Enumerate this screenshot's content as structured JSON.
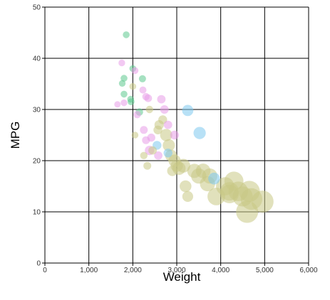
{
  "chart_data": {
    "type": "scatter",
    "title": "",
    "xlabel": "Weight",
    "ylabel": "MPG",
    "xlim": [
      0,
      6000
    ],
    "ylim": [
      0,
      50
    ],
    "x_ticks": [
      0,
      1000,
      2000,
      3000,
      4000,
      5000,
      6000
    ],
    "x_tick_labels": [
      "0",
      "1,000",
      "2,000",
      "3,000",
      "4,000",
      "5,000",
      "6,000"
    ],
    "y_ticks": [
      0,
      10,
      20,
      30,
      40,
      50
    ],
    "y_tick_labels": [
      "0",
      "10",
      "20",
      "30",
      "40",
      "50"
    ],
    "grid": true,
    "legend": "none",
    "bubble_size_encoding": "displacement",
    "series": [
      {
        "color": "#5cc98e",
        "points": [
          {
            "x": 1850,
            "y": 44.6,
            "size": 90
          },
          {
            "x": 1800,
            "y": 36.1,
            "size": 90
          },
          {
            "x": 1760,
            "y": 35.1,
            "size": 85
          },
          {
            "x": 1800,
            "y": 33.0,
            "size": 90
          },
          {
            "x": 1950,
            "y": 32.0,
            "size": 90
          },
          {
            "x": 2000,
            "y": 38.0,
            "size": 90
          },
          {
            "x": 2220,
            "y": 36.0,
            "size": 95
          },
          {
            "x": 2150,
            "y": 29.5,
            "size": 100
          },
          {
            "x": 1960,
            "y": 31.5,
            "size": 90
          }
        ]
      },
      {
        "color": "#e89ce8",
        "points": [
          {
            "x": 1750,
            "y": 39.1,
            "size": 85
          },
          {
            "x": 1650,
            "y": 31.0,
            "size": 80
          },
          {
            "x": 1800,
            "y": 31.3,
            "size": 85
          },
          {
            "x": 2050,
            "y": 37.6,
            "size": 90
          },
          {
            "x": 2230,
            "y": 33.8,
            "size": 95
          },
          {
            "x": 2300,
            "y": 32.5,
            "size": 100
          },
          {
            "x": 2350,
            "y": 32.2,
            "size": 105
          },
          {
            "x": 2100,
            "y": 29.0,
            "size": 100
          },
          {
            "x": 2250,
            "y": 26.0,
            "size": 110
          },
          {
            "x": 2420,
            "y": 24.5,
            "size": 115
          },
          {
            "x": 2300,
            "y": 24.0,
            "size": 110
          },
          {
            "x": 2650,
            "y": 32.0,
            "size": 120
          },
          {
            "x": 2720,
            "y": 30.0,
            "size": 125
          },
          {
            "x": 2800,
            "y": 27.0,
            "size": 120
          },
          {
            "x": 2380,
            "y": 22.0,
            "size": 140
          },
          {
            "x": 2950,
            "y": 25.0,
            "size": 130
          },
          {
            "x": 2580,
            "y": 21.0,
            "size": 120
          }
        ]
      },
      {
        "color": "#7ec8ee",
        "points": [
          {
            "x": 3250,
            "y": 29.8,
            "size": 180
          },
          {
            "x": 3520,
            "y": 25.4,
            "size": 200
          },
          {
            "x": 2550,
            "y": 23.0,
            "size": 130
          },
          {
            "x": 3850,
            "y": 16.5,
            "size": 190
          },
          {
            "x": 2800,
            "y": 21.5,
            "size": 130
          }
        ]
      },
      {
        "color": "#c9c985",
        "points": [
          {
            "x": 2000,
            "y": 34.5,
            "size": 90
          },
          {
            "x": 2380,
            "y": 30.0,
            "size": 100
          },
          {
            "x": 2050,
            "y": 25.0,
            "size": 90
          },
          {
            "x": 2250,
            "y": 21.0,
            "size": 100
          },
          {
            "x": 2330,
            "y": 19.0,
            "size": 110
          },
          {
            "x": 2450,
            "y": 22.0,
            "size": 120
          },
          {
            "x": 2570,
            "y": 26.0,
            "size": 130
          },
          {
            "x": 2600,
            "y": 27.0,
            "size": 140
          },
          {
            "x": 2680,
            "y": 28.0,
            "size": 130
          },
          {
            "x": 2760,
            "y": 25.0,
            "size": 200
          },
          {
            "x": 2820,
            "y": 23.0,
            "size": 200
          },
          {
            "x": 2870,
            "y": 21.0,
            "size": 190
          },
          {
            "x": 2950,
            "y": 20.0,
            "size": 200
          },
          {
            "x": 3050,
            "y": 18.5,
            "size": 220
          },
          {
            "x": 3150,
            "y": 19.0,
            "size": 230
          },
          {
            "x": 3200,
            "y": 15.0,
            "size": 190
          },
          {
            "x": 3250,
            "y": 13.0,
            "size": 170
          },
          {
            "x": 3400,
            "y": 18.0,
            "size": 240
          },
          {
            "x": 3500,
            "y": 17.0,
            "size": 260
          },
          {
            "x": 3600,
            "y": 18.0,
            "size": 250
          },
          {
            "x": 3750,
            "y": 17.0,
            "size": 260
          },
          {
            "x": 3900,
            "y": 13.0,
            "size": 310
          },
          {
            "x": 4100,
            "y": 15.0,
            "size": 320
          },
          {
            "x": 4200,
            "y": 14.0,
            "size": 330
          },
          {
            "x": 4300,
            "y": 16.0,
            "size": 340
          },
          {
            "x": 4400,
            "y": 14.0,
            "size": 350
          },
          {
            "x": 4500,
            "y": 13.0,
            "size": 360
          },
          {
            "x": 4650,
            "y": 14.0,
            "size": 380
          },
          {
            "x": 4700,
            "y": 12.5,
            "size": 390
          },
          {
            "x": 4950,
            "y": 12.0,
            "size": 400
          },
          {
            "x": 4600,
            "y": 10.0,
            "size": 400
          },
          {
            "x": 4200,
            "y": 13.5,
            "size": 330
          },
          {
            "x": 3700,
            "y": 15.5,
            "size": 260
          },
          {
            "x": 3000,
            "y": 19.0,
            "size": 200
          },
          {
            "x": 2900,
            "y": 18.0,
            "size": 160
          }
        ]
      }
    ]
  }
}
